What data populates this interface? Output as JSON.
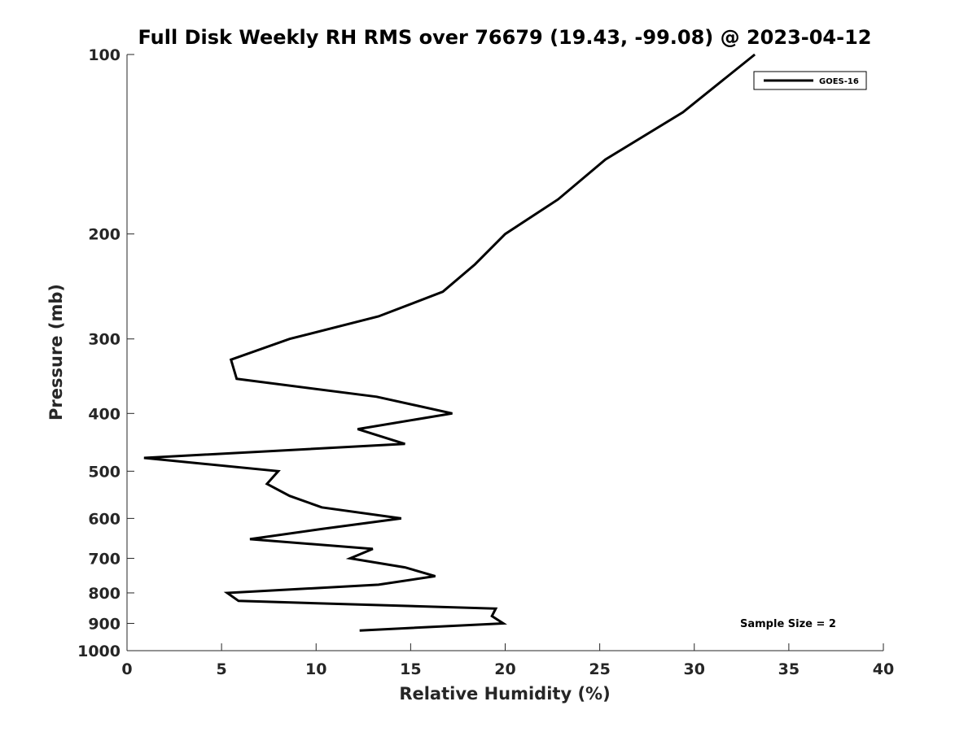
{
  "chart_data": {
    "type": "line",
    "title": "Full Disk Weekly RH RMS over 76679 (19.43, -99.08) @ 2023-04-12",
    "xlabel": "Relative Humidity (%)",
    "ylabel": "Pressure (mb)",
    "xlim": [
      0,
      40
    ],
    "ylim": [
      100,
      1000
    ],
    "y_scale": "log",
    "y_reversed": true,
    "grid": false,
    "legend_position": "top-right",
    "x_ticks": [
      "0",
      "5",
      "10",
      "15",
      "20",
      "25",
      "30",
      "35",
      "40"
    ],
    "y_ticks": [
      "100",
      "200",
      "300",
      "400",
      "500",
      "600",
      "700",
      "800",
      "900",
      "1000"
    ],
    "series": [
      {
        "name": "GOES-16",
        "color": "#000000",
        "points": [
          {
            "x": 33.2,
            "y": 100
          },
          {
            "x": 29.4,
            "y": 125
          },
          {
            "x": 25.3,
            "y": 150
          },
          {
            "x": 22.8,
            "y": 175
          },
          {
            "x": 20.0,
            "y": 200
          },
          {
            "x": 18.4,
            "y": 225
          },
          {
            "x": 16.7,
            "y": 250
          },
          {
            "x": 13.3,
            "y": 275
          },
          {
            "x": 8.6,
            "y": 300
          },
          {
            "x": 5.5,
            "y": 325
          },
          {
            "x": 5.8,
            "y": 350
          },
          {
            "x": 13.2,
            "y": 375
          },
          {
            "x": 17.2,
            "y": 400
          },
          {
            "x": 12.2,
            "y": 425
          },
          {
            "x": 14.7,
            "y": 450
          },
          {
            "x": 0.9,
            "y": 475
          },
          {
            "x": 8.0,
            "y": 500
          },
          {
            "x": 7.4,
            "y": 525
          },
          {
            "x": 8.6,
            "y": 550
          },
          {
            "x": 10.3,
            "y": 575
          },
          {
            "x": 14.5,
            "y": 600
          },
          {
            "x": 10.3,
            "y": 625
          },
          {
            "x": 6.5,
            "y": 650
          },
          {
            "x": 13.0,
            "y": 675
          },
          {
            "x": 11.8,
            "y": 700
          },
          {
            "x": 14.7,
            "y": 725
          },
          {
            "x": 16.3,
            "y": 750
          },
          {
            "x": 13.3,
            "y": 775
          },
          {
            "x": 5.3,
            "y": 800
          },
          {
            "x": 5.9,
            "y": 825
          },
          {
            "x": 19.5,
            "y": 850
          },
          {
            "x": 19.3,
            "y": 875
          },
          {
            "x": 19.9,
            "y": 900
          },
          {
            "x": 12.3,
            "y": 925
          }
        ]
      }
    ],
    "annotations": [
      "Sample Size = 2"
    ]
  }
}
